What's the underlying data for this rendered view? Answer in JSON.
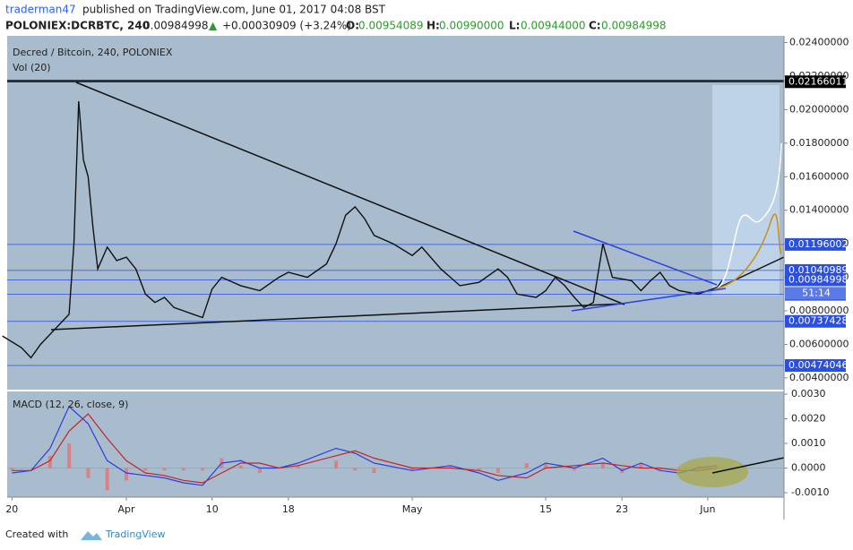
{
  "header": {
    "author": "traderman47",
    "published": "published on TradingView.com, June 01, 2017 04:08 BST",
    "symbol": "POLONIEX:DCRBTC, 240",
    "last": 0.00984998,
    "arrow": "▲",
    "change": "+0.00030909 (+3.24%)",
    "o_label": "O:",
    "open": 0.00954089,
    "h_label": "H:",
    "high": 0.0099,
    "high_label": "0.00990000",
    "l_label": "L:",
    "low": 0.00944,
    "low_label": "0.00944000",
    "c_label": "C:",
    "close": 0.00984998
  },
  "legend": {
    "name": "Decred / Bitcoin, 240, POLONIEX",
    "volume": "Vol (20)",
    "macd": "MACD (12, 26, close, 9)"
  },
  "footer": {
    "created": "Created with",
    "brand": "TradingView"
  },
  "chart_data": {
    "type": "line",
    "color": "#111111",
    "x": [
      -1,
      1,
      2,
      3,
      5,
      6,
      6.5,
      7,
      7.5,
      8,
      8.5,
      9,
      10,
      11,
      12,
      13,
      14,
      15,
      16,
      17,
      18,
      19,
      20,
      21,
      22,
      24,
      26,
      28,
      29,
      31,
      33,
      34,
      35,
      36,
      37,
      38,
      40,
      42,
      43,
      45,
      47,
      49,
      51,
      52,
      53,
      55,
      56,
      57,
      58,
      59,
      60,
      61,
      62,
      63,
      65,
      66,
      67,
      68,
      69,
      70,
      72,
      73,
      74,
      74.5
    ],
    "values": [
      0.0065,
      0.0058,
      0.0052,
      0.006,
      0.0072,
      0.0078,
      0.012,
      0.0205,
      0.017,
      0.016,
      0.013,
      0.0105,
      0.0118,
      0.011,
      0.0112,
      0.0105,
      0.009,
      0.0085,
      0.0088,
      0.0082,
      0.008,
      0.0078,
      0.0076,
      0.0093,
      0.01,
      0.0095,
      0.0092,
      0.01,
      0.0103,
      0.01,
      0.0108,
      0.012,
      0.0137,
      0.0142,
      0.0135,
      0.0125,
      0.012,
      0.0113,
      0.0118,
      0.0105,
      0.0095,
      0.0097,
      0.0105,
      0.01,
      0.009,
      0.0088,
      0.0092,
      0.01,
      0.0095,
      0.0088,
      0.0082,
      0.0085,
      0.012,
      0.01,
      0.0098,
      0.0092,
      0.0098,
      0.0103,
      0.0095,
      0.0092,
      0.009,
      0.0092,
      0.0094,
      0.0098
    ],
    "xlim": [
      -0.5,
      81
    ],
    "xticks": [
      {
        "value": 0,
        "label": "20"
      },
      {
        "value": 12,
        "label": "Apr"
      },
      {
        "value": 21,
        "label": "10"
      },
      {
        "value": 29,
        "label": "18"
      },
      {
        "value": 42,
        "label": "May"
      },
      {
        "value": 56,
        "label": "15"
      },
      {
        "value": 64,
        "label": "23"
      },
      {
        "value": 73,
        "label": "Jun"
      }
    ],
    "ylim": [
      0.0033,
      0.0244
    ],
    "yticks": [
      {
        "value": 0.024,
        "label": "0.02400000"
      },
      {
        "value": 0.022,
        "label": "0.02200000"
      },
      {
        "value": 0.02,
        "label": "0.02000000"
      },
      {
        "value": 0.018,
        "label": "0.01800000"
      },
      {
        "value": 0.016,
        "label": "0.01600000"
      },
      {
        "value": 0.014,
        "label": "0.01400000"
      },
      {
        "value": 0.012,
        "label": "0.01200000"
      },
      {
        "value": 0.01,
        "label": "0.01000000"
      },
      {
        "value": 0.008,
        "label": "0.00800000"
      },
      {
        "value": 0.006,
        "label": "0.00600000"
      },
      {
        "value": 0.004,
        "label": "0.00400000"
      }
    ],
    "levels": [
      {
        "value": 0.02166011,
        "color": "#000000"
      },
      {
        "value": 0.01196002,
        "color": "#2b4fe0"
      },
      {
        "value": 0.01040989,
        "color": "#2b4fe0"
      },
      {
        "value": 0.00984998,
        "color": "#2b4fe0"
      },
      {
        "value": 0.00898205,
        "color": "#2b4fe0"
      },
      {
        "value": 0.00737428,
        "color": "#2b4fe0"
      },
      {
        "value": 0.00474046,
        "color": "#2b4fe0"
      }
    ],
    "countdown": "51:14",
    "macd": {
      "x": [
        0,
        2,
        4,
        6,
        8,
        10,
        12,
        14,
        16,
        18,
        20,
        22,
        24,
        26,
        28,
        30,
        34,
        36,
        38,
        42,
        46,
        49,
        51,
        54,
        56,
        59,
        62,
        64,
        66,
        68,
        70,
        72,
        74
      ],
      "macd_color": "#2b3fe0",
      "macd_values": [
        -0.0002,
        -0.0001,
        0.0008,
        0.0025,
        0.0018,
        0.0003,
        -0.0002,
        -0.0003,
        -0.0004,
        -0.0006,
        -0.0007,
        0.0002,
        0.0003,
        0,
        0,
        0.0002,
        0.0008,
        0.0006,
        0.0002,
        -0.0001,
        0.0001,
        -0.0002,
        -0.0005,
        -0.0002,
        0.0002,
        0,
        0.0004,
        -0.0001,
        0.0002,
        -0.0001,
        -0.0002,
        0,
        0.0001
      ],
      "signal_color": "#c0262b",
      "signal_values": [
        -0.0001,
        -0.0001,
        0.0003,
        0.0015,
        0.0022,
        0.0012,
        0.0003,
        -0.0002,
        -0.0003,
        -0.0005,
        -0.0006,
        -0.0002,
        0.0002,
        0.0002,
        0,
        0.0001,
        0.0005,
        0.0007,
        0.0004,
        0,
        0,
        -0.0001,
        -0.0003,
        -0.0004,
        0,
        0.0001,
        0.0002,
        0.0001,
        0,
        0,
        -0.0001,
        -0.0001,
        0
      ],
      "ylim": [
        -0.00118,
        0.00311
      ],
      "yticks": [
        {
          "value": 0.003,
          "label": "0.0030"
        },
        {
          "value": 0.002,
          "label": "0.0020"
        },
        {
          "value": 0.001,
          "label": "0.0010"
        },
        {
          "value": 0,
          "label": "0.0000"
        },
        {
          "value": -0.001,
          "label": "-0.0010"
        }
      ]
    }
  }
}
